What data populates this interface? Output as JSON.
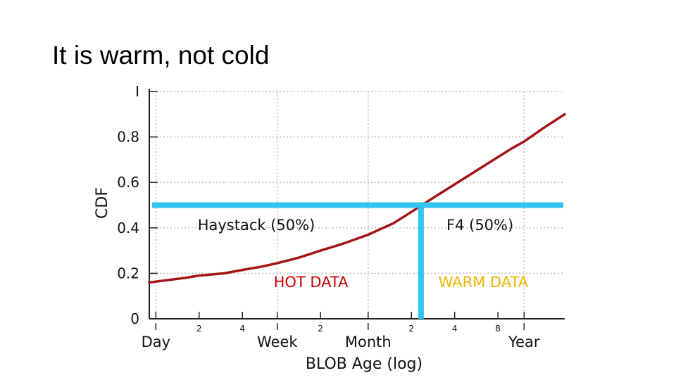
{
  "slide": {
    "title": "It is warm, not cold"
  },
  "chart_data": {
    "type": "line",
    "title": "It is warm, not cold",
    "xlabel": "BLOB Age (log)",
    "ylabel": "CDF",
    "xscale": "log (age in days)",
    "xlim": [
      0.9,
      700
    ],
    "ylim": [
      0,
      1
    ],
    "grid": true,
    "yticks": [
      {
        "value": 0,
        "label": "0"
      },
      {
        "value": 0.2,
        "label": "0.2"
      },
      {
        "value": 0.4,
        "label": "0.4"
      },
      {
        "value": 0.6,
        "label": "0.6"
      },
      {
        "value": 0.8,
        "label": "0.8"
      },
      {
        "value": 1,
        "label": "I"
      }
    ],
    "xticks_major": [
      {
        "days": 1,
        "label": "Day"
      },
      {
        "days": 7,
        "label": "Week"
      },
      {
        "days": 30,
        "label": "Month"
      },
      {
        "days": 365,
        "label": "Year"
      }
    ],
    "xticks_minor": [
      {
        "days": 2,
        "label": "2"
      },
      {
        "days": 4,
        "label": "4"
      },
      {
        "days": 14,
        "label": "2"
      },
      {
        "days": 60,
        "label": "2"
      },
      {
        "days": 120,
        "label": "4"
      },
      {
        "days": 240,
        "label": "8"
      }
    ],
    "series": [
      {
        "name": "CDF",
        "color": "#a31515",
        "x": [
          0.9,
          1.2,
          1.6,
          2,
          3,
          4,
          5.5,
          7,
          10,
          14,
          20,
          30,
          45,
          60,
          75,
          100,
          150,
          200,
          300,
          365,
          500,
          700
        ],
        "y": [
          0.16,
          0.17,
          0.18,
          0.19,
          0.2,
          0.215,
          0.23,
          0.245,
          0.27,
          0.3,
          0.33,
          0.37,
          0.42,
          0.47,
          0.51,
          0.56,
          0.63,
          0.68,
          0.75,
          0.78,
          0.84,
          0.9
        ]
      }
    ],
    "threshold": {
      "cdf": 0.5,
      "age_days": 70,
      "color": "#33c3f0"
    },
    "annotations": [
      {
        "text": "Haystack (50%)",
        "color": "#111111",
        "x_days": 5,
        "y": 0.39
      },
      {
        "text": "HOT DATA",
        "color": "#cc0000",
        "x_days": 12,
        "y": 0.14
      },
      {
        "text": "F4 (50%)",
        "color": "#111111",
        "x_days": 180,
        "y": 0.39
      },
      {
        "text": "WARM DATA",
        "color": "#f0b400",
        "x_days": 190,
        "y": 0.14
      }
    ]
  }
}
